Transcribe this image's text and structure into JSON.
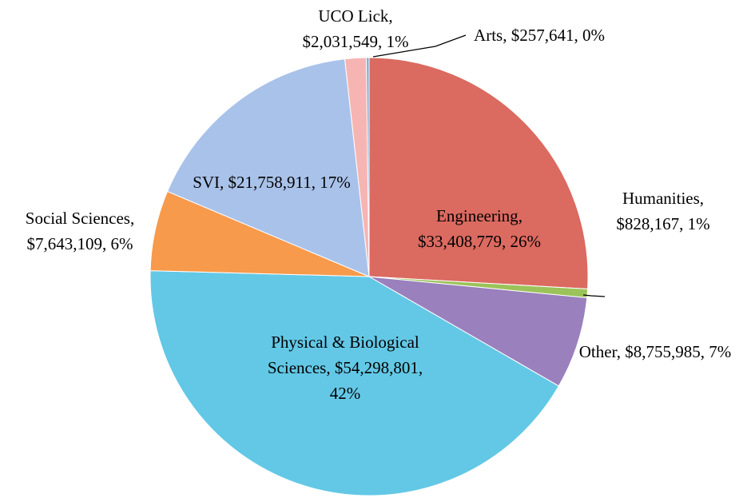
{
  "chart_data": {
    "type": "pie",
    "categories": [
      "Engineering",
      "Humanities",
      "Other",
      "Physical & Biological Sciences",
      "Social Sciences",
      "SVI",
      "UCO Lick",
      "Arts"
    ],
    "values": [
      33408779,
      828167,
      8755985,
      54298801,
      7643109,
      21758911,
      2031549,
      257641
    ],
    "value_labels": [
      "$33,408,779",
      "$828,167",
      "$8,755,985",
      "$54,298,801",
      "$7,643,109",
      "$21,758,911",
      "$2,031,549",
      "$257,641"
    ],
    "percent_labels": [
      "26%",
      "1%",
      "7%",
      "42%",
      "6%",
      "17%",
      "1%",
      "0%"
    ],
    "colors": [
      "#db6a60",
      "#9bc35a",
      "#9a80bd",
      "#63c8e6",
      "#f79a4c",
      "#a9c2ea",
      "#f6b5b3",
      "#7fa8da"
    ]
  }
}
